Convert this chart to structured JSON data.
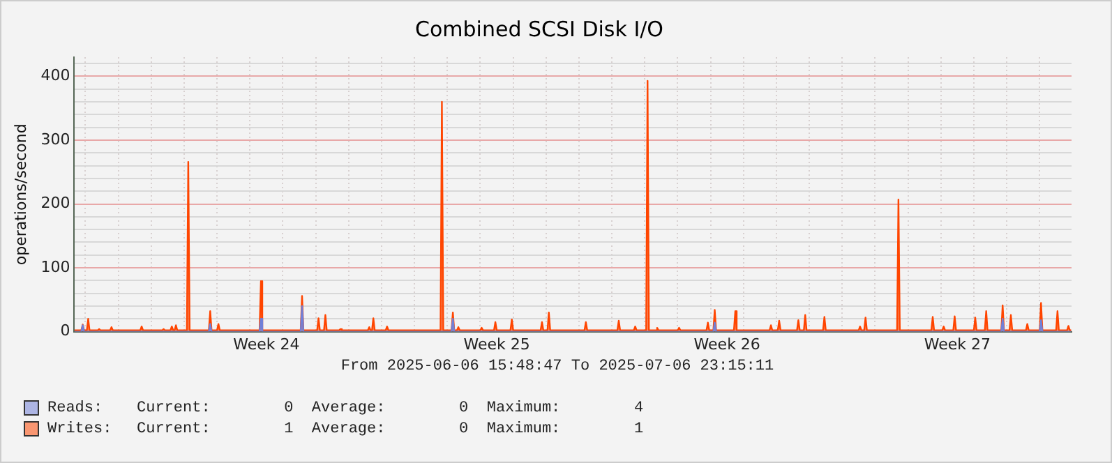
{
  "chart_data": {
    "type": "area",
    "title": "Combined SCSI Disk I/O",
    "ylabel": "operations/second",
    "xlim": [
      "2025-06-06T15:48:47",
      "2025-07-06T23:15:11"
    ],
    "xticks": [
      {
        "value": "2025-06-07T00:00",
        "label": null
      },
      {
        "value": "2025-06-08T00:00",
        "label": null
      },
      {
        "value": "2025-06-09T00:00",
        "label": null
      },
      {
        "value": "2025-06-10T00:00",
        "label": null
      },
      {
        "value": "2025-06-11T00:00",
        "label": null
      },
      {
        "value": "2025-06-12T00:00",
        "label": null
      },
      {
        "value": "2025-06-12T12:00",
        "label": "Week 24"
      },
      {
        "value": "2025-06-13T00:00",
        "label": null
      },
      {
        "value": "2025-06-14T00:00",
        "label": null
      },
      {
        "value": "2025-06-15T00:00",
        "label": null
      },
      {
        "value": "2025-06-16T00:00",
        "label": null
      },
      {
        "value": "2025-06-17T00:00",
        "label": null
      },
      {
        "value": "2025-06-18T00:00",
        "label": null
      },
      {
        "value": "2025-06-19T00:00",
        "label": null
      },
      {
        "value": "2025-06-19T12:00",
        "label": "Week 25"
      },
      {
        "value": "2025-06-20T00:00",
        "label": null
      },
      {
        "value": "2025-06-21T00:00",
        "label": null
      },
      {
        "value": "2025-06-22T00:00",
        "label": null
      },
      {
        "value": "2025-06-23T00:00",
        "label": null
      },
      {
        "value": "2025-06-24T00:00",
        "label": null
      },
      {
        "value": "2025-06-25T00:00",
        "label": null
      },
      {
        "value": "2025-06-26T00:00",
        "label": null
      },
      {
        "value": "2025-06-26T12:00",
        "label": "Week 26"
      },
      {
        "value": "2025-06-27T00:00",
        "label": null
      },
      {
        "value": "2025-06-28T00:00",
        "label": null
      },
      {
        "value": "2025-06-29T00:00",
        "label": null
      },
      {
        "value": "2025-06-30T00:00",
        "label": null
      },
      {
        "value": "2025-07-01T00:00",
        "label": null
      },
      {
        "value": "2025-07-02T00:00",
        "label": null
      },
      {
        "value": "2025-07-03T00:00",
        "label": null
      },
      {
        "value": "2025-07-03T12:00",
        "label": "Week 27"
      },
      {
        "value": "2025-07-04T00:00",
        "label": null
      },
      {
        "value": "2025-07-05T00:00",
        "label": null
      },
      {
        "value": "2025-07-06T00:00",
        "label": null
      }
    ],
    "ylim": [
      0,
      430
    ],
    "yticks": [
      0,
      {
        "value": 20,
        "label": null
      },
      {
        "value": 40,
        "label": null
      },
      {
        "value": 60,
        "label": null
      },
      {
        "value": 80,
        "label": null
      },
      100,
      {
        "value": 120,
        "label": null
      },
      {
        "value": 140,
        "label": null
      },
      {
        "value": 160,
        "label": null
      },
      {
        "value": 180,
        "label": null
      },
      200,
      {
        "value": 220,
        "label": null
      },
      {
        "value": 240,
        "label": null
      },
      {
        "value": 260,
        "label": null
      },
      {
        "value": 280,
        "label": null
      },
      300,
      {
        "value": 320,
        "label": null
      },
      {
        "value": 340,
        "label": null
      },
      {
        "value": 360,
        "label": null
      },
      {
        "value": 380,
        "label": null
      },
      400,
      {
        "value": 420,
        "label": null
      }
    ],
    "grid": true,
    "legend": "bottom left",
    "annotations": [
      "From 2025-06-06 15:48:47 To 2025-07-06 23:15:11",
      "Current:        1  Average:        0  Maximum:        1",
      "Current:        0  Average:        0  Maximum:        4"
    ],
    "series": [
      {
        "name": "Writes:",
        "color": "#ff4500",
        "x": [
          "2025-06-06T16:00",
          "2025-06-06T21:00",
          "2025-06-06T22:00",
          "2025-06-06T23:00",
          "2025-06-07T01:00",
          "2025-06-07T02:00",
          "2025-06-07T03:00",
          "2025-06-07T09:00",
          "2025-06-07T10:00",
          "2025-06-07T11:00",
          "2025-06-07T18:00",
          "2025-06-07T19:00",
          "2025-06-07T20:00",
          "2025-06-08T16:00",
          "2025-06-08T17:00",
          "2025-06-08T18:00",
          "2025-06-09T08:00",
          "2025-06-09T09:00",
          "2025-06-09T10:00",
          "2025-06-09T14:00",
          "2025-06-09T15:00",
          "2025-06-09T16:00",
          "2025-06-09T17:00",
          "2025-06-09T18:00",
          "2025-06-09T19:00",
          "2025-06-10T02:00",
          "2025-06-10T03:00",
          "2025-06-10T04:00",
          "2025-06-10T18:00",
          "2025-06-10T19:00",
          "2025-06-10T20:00",
          "2025-06-11T00:00",
          "2025-06-11T01:00",
          "2025-06-11T02:00",
          "2025-06-12T07:00",
          "2025-06-12T08:00",
          "2025-06-12T09:00",
          "2025-06-13T13:00",
          "2025-06-13T14:00",
          "2025-06-13T15:00",
          "2025-06-14T01:00",
          "2025-06-14T02:00",
          "2025-06-14T03:00",
          "2025-06-14T06:00",
          "2025-06-14T07:00",
          "2025-06-14T08:00",
          "2025-06-14T17:00",
          "2025-06-14T18:00",
          "2025-06-14T19:00",
          "2025-06-15T14:00",
          "2025-06-15T15:00",
          "2025-06-15T16:00",
          "2025-06-15T17:00",
          "2025-06-15T18:00",
          "2025-06-15T19:00",
          "2025-06-16T03:00",
          "2025-06-16T04:00",
          "2025-06-16T05:00",
          "2025-06-17T19:00",
          "2025-06-17T20:00",
          "2025-06-17T21:00",
          "2025-06-18T03:00",
          "2025-06-18T04:00",
          "2025-06-18T05:00",
          "2025-06-18T07:00",
          "2025-06-18T08:00",
          "2025-06-18T09:00",
          "2025-06-19T00:00",
          "2025-06-19T01:00",
          "2025-06-19T02:00",
          "2025-06-19T10:00",
          "2025-06-19T11:00",
          "2025-06-19T12:00",
          "2025-06-19T22:00",
          "2025-06-19T23:00",
          "2025-06-20T00:00",
          "2025-06-20T20:00",
          "2025-06-20T21:00",
          "2025-06-20T22:00",
          "2025-06-21T01:00",
          "2025-06-21T02:00",
          "2025-06-21T03:00",
          "2025-06-22T04:00",
          "2025-06-22T05:00",
          "2025-06-22T06:00",
          "2025-06-23T04:00",
          "2025-06-23T05:00",
          "2025-06-23T06:00",
          "2025-06-23T16:00",
          "2025-06-23T17:00",
          "2025-06-23T18:00",
          "2025-06-24T01:00",
          "2025-06-24T02:00",
          "2025-06-24T03:00",
          "2025-06-24T08:00",
          "2025-06-24T09:00",
          "2025-06-24T10:00",
          "2025-06-25T00:00",
          "2025-06-25T01:00",
          "2025-06-25T02:00",
          "2025-06-25T21:00",
          "2025-06-25T22:00",
          "2025-06-25T23:00",
          "2025-06-26T02:00",
          "2025-06-26T03:00",
          "2025-06-26T04:00",
          "2025-06-26T17:00",
          "2025-06-26T18:00",
          "2025-06-26T19:00",
          "2025-06-27T19:00",
          "2025-06-27T20:00",
          "2025-06-27T21:00",
          "2025-06-28T01:00",
          "2025-06-28T02:00",
          "2025-06-28T03:00",
          "2025-06-28T15:00",
          "2025-06-28T16:00",
          "2025-06-28T17:00",
          "2025-06-28T20:00",
          "2025-06-28T21:00",
          "2025-06-28T22:00",
          "2025-06-29T10:00",
          "2025-06-29T11:00",
          "2025-06-29T12:00",
          "2025-06-30T12:00",
          "2025-06-30T13:00",
          "2025-06-30T14:00",
          "2025-06-30T16:00",
          "2025-06-30T17:00",
          "2025-06-30T18:00",
          "2025-07-01T16:00",
          "2025-07-01T17:00",
          "2025-07-01T18:00",
          "2025-07-02T17:00",
          "2025-07-02T18:00",
          "2025-07-02T19:00",
          "2025-07-03T01:00",
          "2025-07-03T02:00",
          "2025-07-03T03:00",
          "2025-07-03T09:00",
          "2025-07-03T10:00",
          "2025-07-03T11:00",
          "2025-07-04T00:00",
          "2025-07-04T01:00",
          "2025-07-04T02:00",
          "2025-07-04T08:00",
          "2025-07-04T09:00",
          "2025-07-04T10:00",
          "2025-07-04T20:00",
          "2025-07-04T21:00",
          "2025-07-04T22:00",
          "2025-07-05T02:00",
          "2025-07-05T03:00",
          "2025-07-05T04:00",
          "2025-07-05T14:00",
          "2025-07-05T15:00",
          "2025-07-05T16:00",
          "2025-07-06T00:00",
          "2025-07-06T01:00",
          "2025-07-06T02:00",
          "2025-07-06T12:00",
          "2025-07-06T13:00",
          "2025-07-06T14:00",
          "2025-07-06T20:00",
          "2025-07-06T21:00",
          "2025-07-06T22:00",
          "2025-07-06T23:00"
        ],
        "values": [
          2,
          2,
          11,
          2,
          2,
          20,
          2,
          2,
          4,
          2,
          2,
          7,
          2,
          2,
          8,
          2,
          2,
          4,
          2,
          2,
          8,
          2,
          2,
          10,
          2,
          2,
          266,
          2,
          2,
          32,
          2,
          2,
          12,
          2,
          2,
          79,
          2,
          2,
          56,
          2,
          2,
          21,
          2,
          2,
          26,
          2,
          2,
          4,
          2,
          2,
          7,
          2,
          2,
          21,
          2,
          2,
          8,
          2,
          2,
          360,
          2,
          2,
          30,
          2,
          2,
          7,
          2,
          2,
          6,
          2,
          2,
          15,
          2,
          2,
          19,
          2,
          2,
          15,
          2,
          2,
          30,
          2,
          2,
          15,
          2,
          2,
          17,
          2,
          2,
          8,
          2,
          2,
          393,
          2,
          2,
          6,
          2,
          2,
          6,
          2,
          2,
          14,
          2,
          2,
          34,
          2,
          2,
          32,
          2,
          2,
          10,
          2,
          2,
          17,
          2,
          2,
          18,
          2,
          2,
          26,
          2,
          2,
          23,
          2,
          2,
          8,
          2,
          2,
          22,
          2,
          2,
          207,
          2,
          2,
          23,
          2,
          2,
          8,
          2,
          2,
          24,
          2,
          2,
          22,
          2,
          2,
          32,
          2,
          2,
          41,
          2,
          2,
          26,
          2,
          2,
          12,
          2,
          2,
          45,
          2,
          2,
          32,
          2,
          2,
          9,
          2,
          2
        ]
      },
      {
        "name": "Reads:",
        "color": "#7080d8",
        "x": [
          "2025-06-06T16:00",
          "2025-06-06T21:00",
          "2025-06-06T22:00",
          "2025-06-06T23:00",
          "2025-06-10T18:00",
          "2025-06-10T19:00",
          "2025-06-10T20:00",
          "2025-06-12T07:00",
          "2025-06-12T08:00",
          "2025-06-12T09:00",
          "2025-06-13T13:00",
          "2025-06-13T14:00",
          "2025-06-13T15:00",
          "2025-06-18T03:00",
          "2025-06-18T04:00",
          "2025-06-18T05:00",
          "2025-06-26T02:00",
          "2025-06-26T03:00",
          "2025-06-26T04:00",
          "2025-07-04T20:00",
          "2025-07-04T21:00",
          "2025-07-04T22:00",
          "2025-07-06T00:00",
          "2025-07-06T01:00",
          "2025-07-06T02:00",
          "2025-07-06T23:00"
        ],
        "values": [
          0,
          0,
          10,
          0,
          0,
          12,
          0,
          0,
          20,
          0,
          0,
          40,
          0,
          0,
          20,
          0,
          0,
          14,
          0,
          0,
          20,
          0,
          0,
          18,
          0,
          0
        ]
      }
    ]
  }
}
